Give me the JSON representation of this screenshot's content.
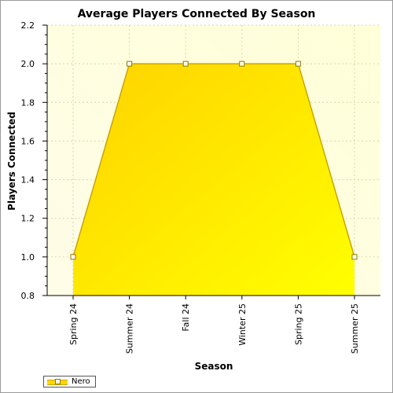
{
  "chart_data": {
    "type": "area",
    "title": "Average Players Connected By Season",
    "xlabel": "Season",
    "ylabel": "Players Connected",
    "categories": [
      "Spring 24",
      "Summer 24",
      "Fall 24",
      "Winter 25",
      "Spring 25",
      "Summer 25"
    ],
    "series": [
      {
        "name": "Nero",
        "values": [
          1.0,
          2.0,
          2.0,
          2.0,
          2.0,
          1.0
        ]
      }
    ],
    "ylim": [
      0.8,
      2.2
    ],
    "yticks": [
      0.8,
      1.0,
      1.2,
      1.4,
      1.6,
      1.8,
      2.0,
      2.2
    ],
    "ytick_labels": [
      "0.8",
      "1.0",
      "1.2",
      "1.4",
      "1.6",
      "1.8",
      "2.0",
      "2.2"
    ],
    "grid": true,
    "legend": "bottom-left",
    "colors": {
      "area_light": "#ffff00",
      "area_dark": "#ffd200",
      "line": "#c9a400",
      "plot_bg": "#fffde0",
      "grid": "#d0d0a0"
    }
  }
}
